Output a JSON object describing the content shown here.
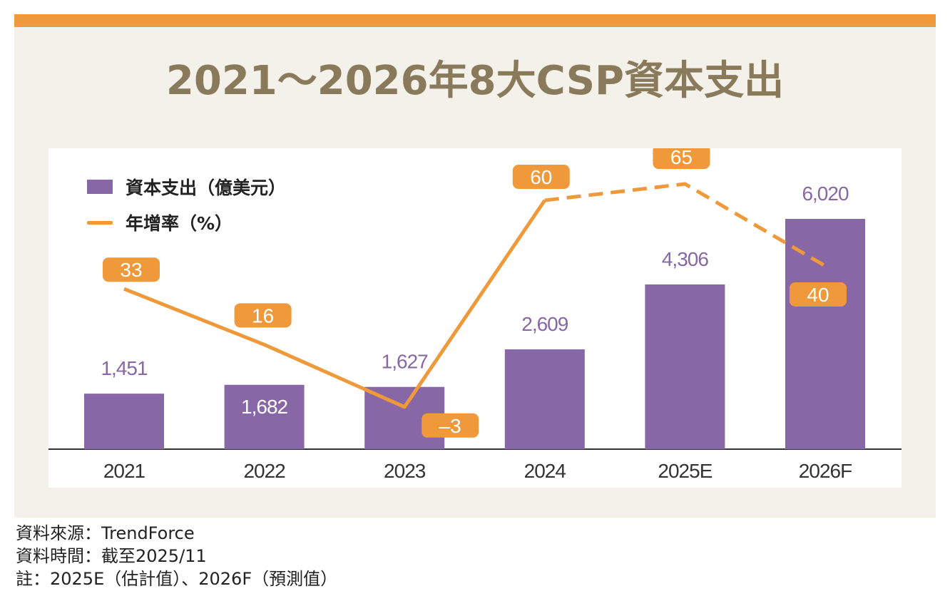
{
  "title": "2021～2026年8大CSP資本支出",
  "legend": {
    "bar_label": "資本支出（億美元）",
    "line_label": "年增率（%）"
  },
  "colors": {
    "accent_bar": "#F0993B",
    "bar": "#8767A5",
    "line": "#F0993B",
    "title": "#8A7A5C",
    "panel": "#F4F1EA"
  },
  "chart_data": {
    "type": "bar",
    "categories": [
      "2021",
      "2022",
      "2023",
      "2024",
      "2025E",
      "2026F"
    ],
    "series": [
      {
        "name": "資本支出（億美元）",
        "kind": "bar",
        "values": [
          1451,
          1682,
          1627,
          2609,
          4306,
          6020
        ],
        "labels": [
          "1,451",
          "1,682",
          "1,627",
          "2,609",
          "4,306",
          "6,020"
        ]
      },
      {
        "name": "年增率（%）",
        "kind": "line",
        "values": [
          33,
          16,
          -3,
          60,
          65,
          40
        ],
        "labels": [
          "33",
          "16",
          "–3",
          "60",
          "65",
          "40"
        ],
        "dashed_from_index": 3
      }
    ],
    "title": "2021～2026年8大CSP資本支出",
    "ylim_bar": [
      0,
      7000
    ],
    "ylim_line": [
      -5,
      70
    ]
  },
  "footer": {
    "source": "資料來源：TrendForce",
    "date": "資料時間：截至2025/11",
    "note": "註：2025E（估計值）、2026F（預測值）"
  }
}
